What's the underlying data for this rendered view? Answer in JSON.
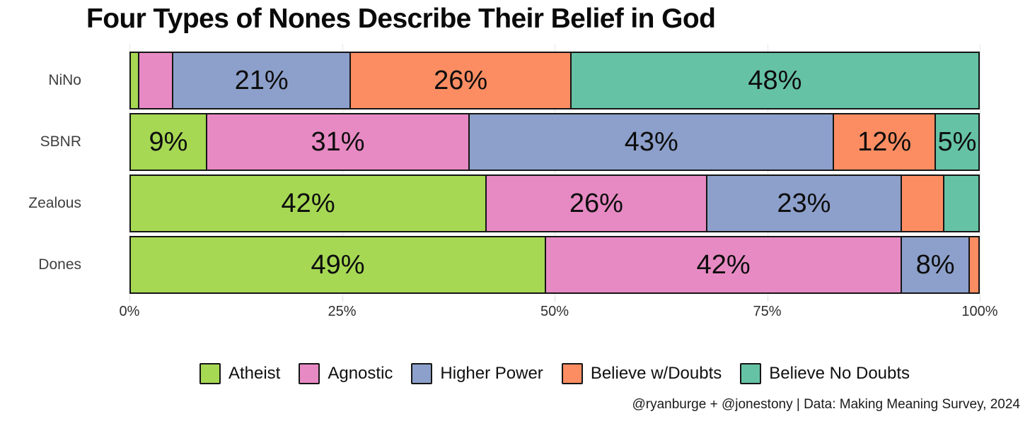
{
  "title": "Four Types of Nones Describe Their Belief in God",
  "caption": "@ryanburge + @jonestony | Data: Making Meaning Survey, 2024",
  "chart_data": {
    "type": "bar",
    "stacked": true,
    "orientation": "horizontal",
    "title": "Four Types of Nones Describe Their Belief in God",
    "categories": [
      "NiNo",
      "SBNR",
      "Zealous",
      "Dones"
    ],
    "series": [
      {
        "name": "Atheist",
        "color": "#a6d854",
        "values": [
          1,
          9,
          42,
          49
        ]
      },
      {
        "name": "Agnostic",
        "color": "#e78ac3",
        "values": [
          4,
          31,
          26,
          42
        ]
      },
      {
        "name": "Higher Power",
        "color": "#8da0cb",
        "values": [
          21,
          43,
          23,
          8
        ]
      },
      {
        "name": "Believe w/Doubts",
        "color": "#fc8d62",
        "values": [
          26,
          12,
          5,
          1
        ]
      },
      {
        "name": "Believe No Doubts",
        "color": "#66c2a5",
        "values": [
          48,
          5,
          4,
          0
        ]
      }
    ],
    "labels_shown": [
      [
        "",
        "",
        "21%",
        "26%",
        "48%"
      ],
      [
        "9%",
        "31%",
        "43%",
        "12%",
        "5%"
      ],
      [
        "42%",
        "26%",
        "23%",
        "",
        ""
      ],
      [
        "49%",
        "42%",
        "8%",
        "",
        ""
      ]
    ],
    "x_axis": {
      "ticks": [
        "0%",
        "25%",
        "50%",
        "75%",
        "100%"
      ],
      "range": [
        0,
        100
      ]
    },
    "xlabel": "",
    "ylabel": "",
    "grid": true,
    "legend_position": "bottom"
  }
}
